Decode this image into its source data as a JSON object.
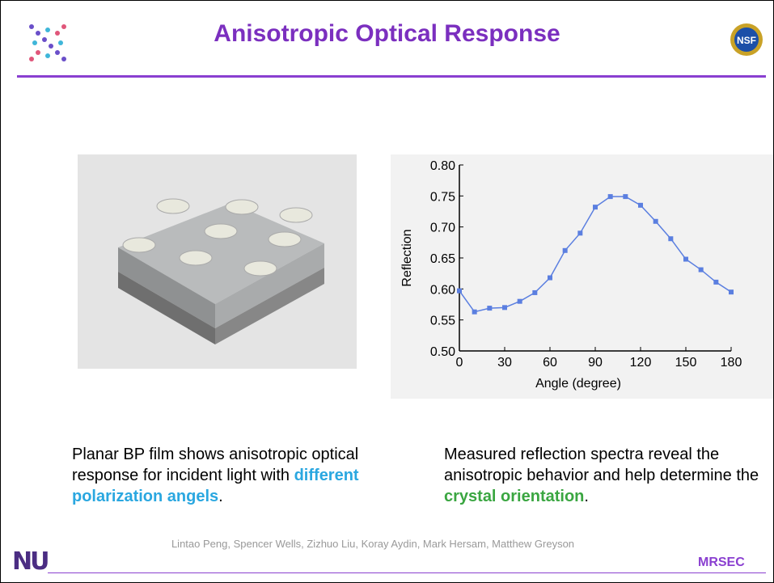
{
  "header": {
    "title": "Anisotropic Optical Response",
    "left_logo": "",
    "right_logo": "NSF"
  },
  "chart_data": {
    "type": "line",
    "x_label": "Angle (degree)",
    "y_label": "Reflection",
    "x": [
      0,
      10,
      20,
      30,
      40,
      50,
      60,
      70,
      80,
      90,
      100,
      110,
      120,
      130,
      140,
      150,
      160,
      170,
      180
    ],
    "values": [
      0.597,
      0.563,
      0.569,
      0.57,
      0.58,
      0.594,
      0.618,
      0.662,
      0.69,
      0.732,
      0.749,
      0.749,
      0.735,
      0.709,
      0.681,
      0.648,
      0.631,
      0.611,
      0.595
    ],
    "color": "#5b7fe0",
    "markers": true,
    "xlim": [
      0,
      180
    ],
    "xticks": [
      0,
      30,
      60,
      90,
      120,
      150,
      180
    ],
    "ylim": [
      0.5,
      0.8
    ],
    "yticks": [
      {
        "value": 0.5,
        "label": "0.50"
      },
      0.55,
      {
        "value": 0.6,
        "label": "0.60"
      },
      0.65,
      {
        "value": 0.7,
        "label": "0.70"
      },
      0.75,
      {
        "value": 0.8,
        "label": "0.80"
      }
    ]
  },
  "captions": [
    {
      "before": "Planar BP film shows anisotropic optical response for incident light with ",
      "highlight": "different polarization angels",
      "after": "."
    },
    {
      "before": "Measured reflection spectra reveal the anisotropic behavior and help determine the ",
      "highlight": "crystal orientation",
      "after": "."
    }
  ],
  "footer": {
    "authors": "Lintao Peng, Spencer Wells, Zizhuo Liu, Koray Aydin, Mark Hersam, Matthew Greyson",
    "left_logo": "NU",
    "right_label": "MRSEC"
  }
}
